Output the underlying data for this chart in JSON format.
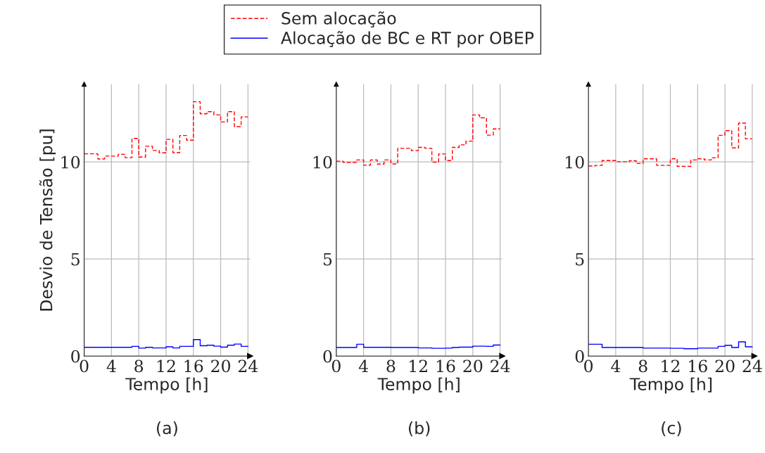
{
  "chart_data": [
    {
      "type": "step",
      "ylabel": "Desvio de Tensão [pu]",
      "xlabel": "Tempo [h]",
      "annotations": [
        "(a)"
      ],
      "xlim": [
        0,
        24.3
      ],
      "ylim": [
        0,
        14
      ],
      "xticks": [
        0,
        4,
        8,
        12,
        16,
        20,
        24
      ],
      "yticks": [
        0,
        5,
        10
      ],
      "grid": true,
      "legend": "top",
      "x": [
        0,
        1,
        2,
        3,
        4,
        5,
        6,
        7,
        8,
        9,
        10,
        11,
        12,
        13,
        14,
        15,
        16,
        17,
        18,
        19,
        20,
        21,
        22,
        23,
        24
      ],
      "series": [
        {
          "name": "Sem alocação",
          "color": "#ff0000",
          "line_style": "dashed",
          "values": [
            10.42,
            10.42,
            10.15,
            10.3,
            10.3,
            10.39,
            10.22,
            11.21,
            10.25,
            10.81,
            10.59,
            10.47,
            11.16,
            10.48,
            11.36,
            11.12,
            13.1,
            12.48,
            12.59,
            12.42,
            12.06,
            12.59,
            11.82,
            12.32,
            12.32
          ]
        },
        {
          "name": "Alocação de BC e RT por OBEP",
          "color": "#0000ff",
          "line_style": "solid",
          "values": [
            0.45,
            0.45,
            0.45,
            0.45,
            0.45,
            0.45,
            0.45,
            0.5,
            0.41,
            0.45,
            0.42,
            0.42,
            0.48,
            0.42,
            0.5,
            0.5,
            0.85,
            0.53,
            0.56,
            0.51,
            0.46,
            0.56,
            0.62,
            0.5,
            0.5
          ]
        }
      ]
    },
    {
      "type": "step",
      "xlabel": "Tempo [h]",
      "annotations": [
        "(b)"
      ],
      "xlim": [
        0,
        24.3
      ],
      "ylim": [
        0,
        14
      ],
      "xticks": [
        0,
        4,
        8,
        12,
        16,
        20,
        24
      ],
      "yticks": [
        0,
        5,
        10
      ],
      "grid": true,
      "x": [
        0,
        1,
        2,
        3,
        4,
        5,
        6,
        7,
        8,
        9,
        10,
        11,
        12,
        13,
        14,
        15,
        16,
        17,
        18,
        19,
        20,
        21,
        22,
        23,
        24
      ],
      "series": [
        {
          "color": "#ff0000",
          "line_style": "dashed",
          "values": [
            10.04,
            9.98,
            9.98,
            10.1,
            9.83,
            10.1,
            9.89,
            10.1,
            9.9,
            10.7,
            10.7,
            10.58,
            10.75,
            10.7,
            9.99,
            10.41,
            10.07,
            10.75,
            10.88,
            11.07,
            12.42,
            12.27,
            11.38,
            11.7,
            11.7
          ]
        },
        {
          "color": "#0000ff",
          "line_style": "solid",
          "values": [
            0.44,
            0.44,
            0.44,
            0.61,
            0.45,
            0.45,
            0.45,
            0.45,
            0.44,
            0.44,
            0.44,
            0.44,
            0.42,
            0.42,
            0.4,
            0.4,
            0.41,
            0.44,
            0.46,
            0.46,
            0.51,
            0.51,
            0.5,
            0.57,
            0.57
          ]
        }
      ]
    },
    {
      "type": "step",
      "xlabel": "Tempo [h]",
      "annotations": [
        "(c)"
      ],
      "xlim": [
        0,
        24.3
      ],
      "ylim": [
        0,
        14
      ],
      "xticks": [
        0,
        4,
        8,
        12,
        16,
        20,
        24
      ],
      "yticks": [
        0,
        5,
        10
      ],
      "grid": true,
      "x": [
        0,
        1,
        2,
        3,
        4,
        5,
        6,
        7,
        8,
        9,
        10,
        11,
        12,
        13,
        14,
        15,
        16,
        17,
        18,
        19,
        20,
        21,
        22,
        23,
        24
      ],
      "series": [
        {
          "color": "#ff0000",
          "line_style": "dashed",
          "values": [
            9.79,
            9.82,
            10.07,
            10.07,
            10.01,
            10.01,
            10.06,
            9.92,
            10.16,
            10.16,
            9.82,
            9.82,
            10.16,
            9.77,
            9.77,
            10.1,
            10.16,
            10.1,
            10.21,
            11.37,
            11.61,
            10.72,
            12.0,
            11.19,
            11.19
          ]
        },
        {
          "color": "#0000ff",
          "line_style": "solid",
          "values": [
            0.61,
            0.61,
            0.44,
            0.44,
            0.44,
            0.44,
            0.44,
            0.44,
            0.41,
            0.41,
            0.41,
            0.41,
            0.4,
            0.4,
            0.38,
            0.38,
            0.41,
            0.41,
            0.41,
            0.5,
            0.55,
            0.44,
            0.73,
            0.48,
            0.48
          ]
        }
      ]
    }
  ]
}
